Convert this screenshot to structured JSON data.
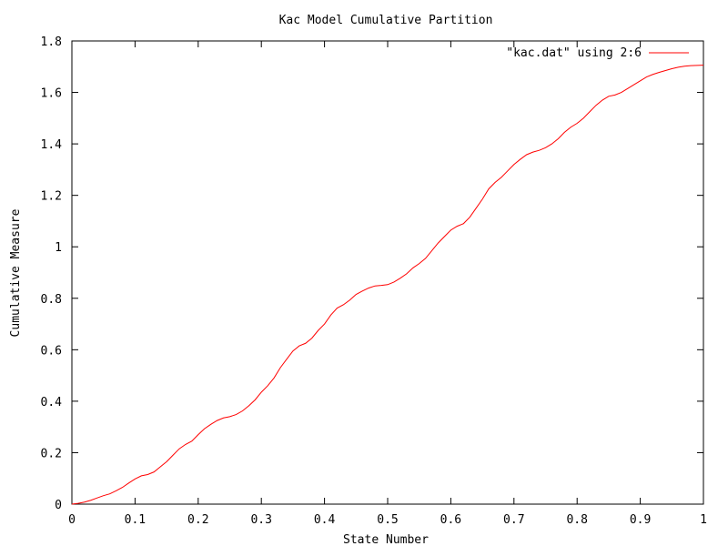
{
  "chart_data": {
    "type": "line",
    "title": "Kac Model Cumulative Partition",
    "xlabel": "State Number",
    "ylabel": "Cumulative Measure",
    "xlim": [
      0,
      1
    ],
    "ylim": [
      0,
      1.8
    ],
    "x_ticks": [
      "0",
      "0.1",
      "0.2",
      "0.3",
      "0.4",
      "0.5",
      "0.6",
      "0.7",
      "0.8",
      "0.9",
      "1"
    ],
    "y_ticks": [
      "0",
      "0.2",
      "0.4",
      "0.6",
      "0.8",
      "1",
      "1.2",
      "1.4",
      "1.6",
      "1.8"
    ],
    "grid": false,
    "legend_position": "top-right",
    "series": [
      {
        "name": "\"kac.dat\" using 2:6",
        "color": "#ff0000",
        "x": [
          0.0,
          0.01,
          0.02,
          0.03,
          0.04,
          0.05,
          0.06,
          0.07,
          0.08,
          0.09,
          0.1,
          0.11,
          0.12,
          0.13,
          0.14,
          0.15,
          0.16,
          0.17,
          0.18,
          0.19,
          0.2,
          0.21,
          0.22,
          0.23,
          0.24,
          0.25,
          0.26,
          0.27,
          0.28,
          0.29,
          0.3,
          0.31,
          0.32,
          0.33,
          0.34,
          0.35,
          0.36,
          0.37,
          0.38,
          0.39,
          0.4,
          0.41,
          0.42,
          0.43,
          0.44,
          0.45,
          0.46,
          0.47,
          0.48,
          0.49,
          0.5,
          0.51,
          0.52,
          0.53,
          0.54,
          0.55,
          0.56,
          0.57,
          0.58,
          0.59,
          0.6,
          0.61,
          0.62,
          0.63,
          0.64,
          0.65,
          0.66,
          0.67,
          0.68,
          0.69,
          0.7,
          0.71,
          0.72,
          0.73,
          0.74,
          0.75,
          0.76,
          0.77,
          0.78,
          0.79,
          0.8,
          0.81,
          0.82,
          0.83,
          0.84,
          0.85,
          0.86,
          0.87,
          0.88,
          0.89,
          0.9,
          0.91,
          0.92,
          0.93,
          0.94,
          0.95,
          0.96,
          0.97,
          0.98,
          0.99,
          1.0
        ],
        "y": [
          0.0,
          0.003,
          0.008,
          0.015,
          0.024,
          0.033,
          0.04,
          0.052,
          0.065,
          0.082,
          0.098,
          0.11,
          0.115,
          0.125,
          0.145,
          0.165,
          0.19,
          0.215,
          0.232,
          0.245,
          0.27,
          0.293,
          0.31,
          0.325,
          0.335,
          0.34,
          0.348,
          0.362,
          0.382,
          0.405,
          0.435,
          0.46,
          0.49,
          0.53,
          0.563,
          0.595,
          0.615,
          0.625,
          0.645,
          0.675,
          0.7,
          0.735,
          0.762,
          0.775,
          0.793,
          0.815,
          0.828,
          0.84,
          0.848,
          0.85,
          0.853,
          0.863,
          0.878,
          0.895,
          0.918,
          0.935,
          0.955,
          0.985,
          1.015,
          1.04,
          1.065,
          1.08,
          1.09,
          1.115,
          1.15,
          1.185,
          1.225,
          1.25,
          1.27,
          1.295,
          1.32,
          1.34,
          1.358,
          1.368,
          1.375,
          1.385,
          1.4,
          1.42,
          1.445,
          1.465,
          1.48,
          1.5,
          1.525,
          1.55,
          1.57,
          1.585,
          1.59,
          1.6,
          1.615,
          1.63,
          1.645,
          1.66,
          1.67,
          1.678,
          1.685,
          1.692,
          1.698,
          1.702,
          1.704,
          1.705,
          1.706
        ]
      }
    ]
  }
}
